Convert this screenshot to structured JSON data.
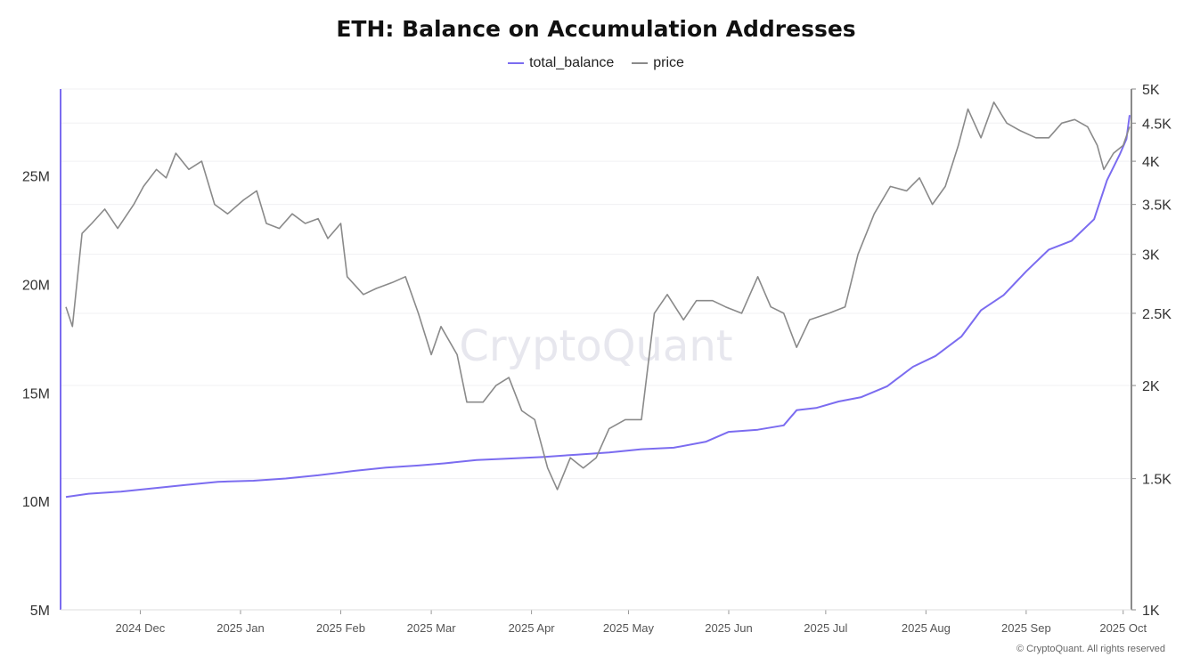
{
  "chart_data": {
    "type": "line",
    "title": "ETH: Balance on Accumulation Addresses",
    "legend_position": "top-center",
    "grid": true,
    "x_tick_labels": [
      "2024 Dec",
      "2025 Jan",
      "2025 Feb",
      "2025 Mar",
      "2025 Apr",
      "2025 May",
      "2025 Jun",
      "2025 Jul",
      "2025 Aug",
      "2025 Sep",
      "2025 Oct"
    ],
    "x_range": [
      "2024-11-08",
      "2025-10-03"
    ],
    "y_left": {
      "ticks": [
        5000000,
        10000000,
        15000000,
        20000000,
        25000000
      ],
      "tick_labels": [
        "5M",
        "10M",
        "15M",
        "20M",
        "25M"
      ],
      "range": [
        5000000,
        29000000
      ]
    },
    "y_right": {
      "scale": "log",
      "ticks": [
        1000,
        1500,
        2000,
        2500,
        3000,
        3500,
        4000,
        4500,
        5000
      ],
      "tick_labels": [
        "1K",
        "1.5K",
        "2K",
        "2.5K",
        "3K",
        "3.5K",
        "4K",
        "4.5K",
        "5K"
      ],
      "range": [
        1000,
        5000
      ]
    },
    "series": [
      {
        "name": "total_balance",
        "axis": "left",
        "color": "#7b6cf0",
        "points": [
          [
            "2024-11-08",
            10200000
          ],
          [
            "2024-11-15",
            10350000
          ],
          [
            "2024-11-25",
            10450000
          ],
          [
            "2024-12-05",
            10600000
          ],
          [
            "2024-12-15",
            10750000
          ],
          [
            "2024-12-25",
            10900000
          ],
          [
            "2025-01-05",
            10950000
          ],
          [
            "2025-01-15",
            11050000
          ],
          [
            "2025-01-25",
            11200000
          ],
          [
            "2025-02-05",
            11400000
          ],
          [
            "2025-02-15",
            11550000
          ],
          [
            "2025-02-25",
            11650000
          ],
          [
            "2025-03-05",
            11750000
          ],
          [
            "2025-03-15",
            11900000
          ],
          [
            "2025-03-25",
            11970000
          ],
          [
            "2025-04-05",
            12050000
          ],
          [
            "2025-04-15",
            12150000
          ],
          [
            "2025-04-25",
            12250000
          ],
          [
            "2025-05-05",
            12400000
          ],
          [
            "2025-05-15",
            12470000
          ],
          [
            "2025-05-25",
            12750000
          ],
          [
            "2025-06-01",
            13200000
          ],
          [
            "2025-06-10",
            13300000
          ],
          [
            "2025-06-18",
            13500000
          ],
          [
            "2025-06-22",
            14200000
          ],
          [
            "2025-06-28",
            14300000
          ],
          [
            "2025-07-05",
            14600000
          ],
          [
            "2025-07-12",
            14800000
          ],
          [
            "2025-07-20",
            15300000
          ],
          [
            "2025-07-28",
            16200000
          ],
          [
            "2025-08-04",
            16700000
          ],
          [
            "2025-08-12",
            17600000
          ],
          [
            "2025-08-18",
            18800000
          ],
          [
            "2025-08-25",
            19500000
          ],
          [
            "2025-09-01",
            20600000
          ],
          [
            "2025-09-08",
            21600000
          ],
          [
            "2025-09-15",
            22000000
          ],
          [
            "2025-09-22",
            23000000
          ],
          [
            "2025-09-26",
            24800000
          ],
          [
            "2025-09-30",
            26000000
          ],
          [
            "2025-10-02",
            26700000
          ],
          [
            "2025-10-03",
            27800000
          ]
        ]
      },
      {
        "name": "price",
        "axis": "right",
        "color": "#8a8a8a",
        "points": [
          [
            "2024-11-08",
            2550
          ],
          [
            "2024-11-10",
            2400
          ],
          [
            "2024-11-13",
            3200
          ],
          [
            "2024-11-16",
            3300
          ],
          [
            "2024-11-20",
            3450
          ],
          [
            "2024-11-24",
            3250
          ],
          [
            "2024-11-29",
            3500
          ],
          [
            "2024-12-02",
            3700
          ],
          [
            "2024-12-06",
            3900
          ],
          [
            "2024-12-09",
            3800
          ],
          [
            "2024-12-12",
            4100
          ],
          [
            "2024-12-16",
            3900
          ],
          [
            "2024-12-20",
            4000
          ],
          [
            "2024-12-24",
            3500
          ],
          [
            "2024-12-28",
            3400
          ],
          [
            "2025-01-02",
            3550
          ],
          [
            "2025-01-06",
            3650
          ],
          [
            "2025-01-09",
            3300
          ],
          [
            "2025-01-13",
            3250
          ],
          [
            "2025-01-17",
            3400
          ],
          [
            "2025-01-21",
            3300
          ],
          [
            "2025-01-25",
            3350
          ],
          [
            "2025-01-28",
            3150
          ],
          [
            "2025-02-01",
            3300
          ],
          [
            "2025-02-03",
            2800
          ],
          [
            "2025-02-08",
            2650
          ],
          [
            "2025-02-12",
            2700
          ],
          [
            "2025-02-17",
            2750
          ],
          [
            "2025-02-21",
            2800
          ],
          [
            "2025-02-25",
            2500
          ],
          [
            "2025-03-01",
            2200
          ],
          [
            "2025-03-04",
            2400
          ],
          [
            "2025-03-09",
            2200
          ],
          [
            "2025-03-12",
            1900
          ],
          [
            "2025-03-17",
            1900
          ],
          [
            "2025-03-21",
            2000
          ],
          [
            "2025-03-25",
            2050
          ],
          [
            "2025-03-29",
            1850
          ],
          [
            "2025-04-02",
            1800
          ],
          [
            "2025-04-06",
            1550
          ],
          [
            "2025-04-09",
            1450
          ],
          [
            "2025-04-13",
            1600
          ],
          [
            "2025-04-17",
            1550
          ],
          [
            "2025-04-21",
            1600
          ],
          [
            "2025-04-25",
            1750
          ],
          [
            "2025-04-30",
            1800
          ],
          [
            "2025-05-05",
            1800
          ],
          [
            "2025-05-09",
            2500
          ],
          [
            "2025-05-13",
            2650
          ],
          [
            "2025-05-18",
            2450
          ],
          [
            "2025-05-22",
            2600
          ],
          [
            "2025-05-27",
            2600
          ],
          [
            "2025-05-31",
            2550
          ],
          [
            "2025-06-05",
            2500
          ],
          [
            "2025-06-10",
            2800
          ],
          [
            "2025-06-14",
            2550
          ],
          [
            "2025-06-18",
            2500
          ],
          [
            "2025-06-22",
            2250
          ],
          [
            "2025-06-26",
            2450
          ],
          [
            "2025-07-02",
            2500
          ],
          [
            "2025-07-07",
            2550
          ],
          [
            "2025-07-11",
            3000
          ],
          [
            "2025-07-16",
            3400
          ],
          [
            "2025-07-21",
            3700
          ],
          [
            "2025-07-26",
            3650
          ],
          [
            "2025-07-30",
            3800
          ],
          [
            "2025-08-03",
            3500
          ],
          [
            "2025-08-07",
            3700
          ],
          [
            "2025-08-11",
            4200
          ],
          [
            "2025-08-14",
            4700
          ],
          [
            "2025-08-18",
            4300
          ],
          [
            "2025-08-22",
            4800
          ],
          [
            "2025-08-26",
            4500
          ],
          [
            "2025-08-30",
            4400
          ],
          [
            "2025-09-04",
            4300
          ],
          [
            "2025-09-08",
            4300
          ],
          [
            "2025-09-12",
            4500
          ],
          [
            "2025-09-16",
            4550
          ],
          [
            "2025-09-20",
            4450
          ],
          [
            "2025-09-23",
            4200
          ],
          [
            "2025-09-25",
            3900
          ],
          [
            "2025-09-28",
            4100
          ],
          [
            "2025-10-01",
            4200
          ],
          [
            "2025-10-03",
            4450
          ]
        ]
      }
    ]
  },
  "watermark": "CryptoQuant",
  "copyright": "© CryptoQuant. All rights reserved"
}
